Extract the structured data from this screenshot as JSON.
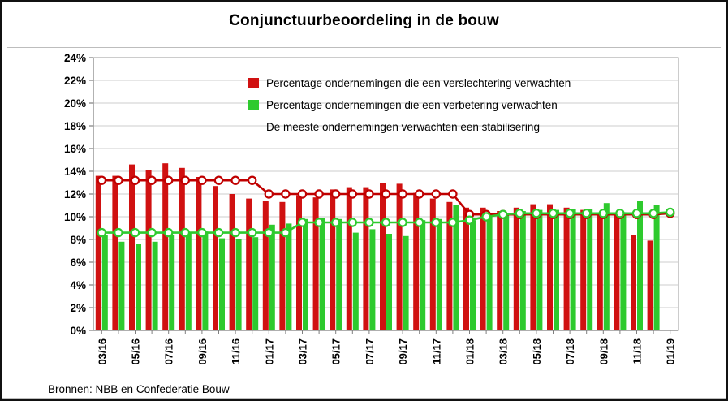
{
  "title": "Conjunctuurbeoordeling in de bouw",
  "source": "Bronnen: NBB en Confederatie Bouw",
  "legend": {
    "items": [
      {
        "swatch": "#d01111",
        "label": "Percentage ondernemingen die een verslechtering verwachten"
      },
      {
        "swatch": "#2eca2e",
        "label": "Percentage ondernemingen die een verbetering verwachten"
      },
      {
        "swatch": null,
        "label": "De meeste ondernemingen verwachten een stabilisering"
      }
    ]
  },
  "chart_data": {
    "type": "bar",
    "title": "Conjunctuurbeoordeling in de bouw",
    "categories": [
      "03/16",
      "04/16",
      "05/16",
      "06/16",
      "07/16",
      "08/16",
      "09/16",
      "10/16",
      "11/16",
      "12/16",
      "01/17",
      "02/17",
      "03/17",
      "04/17",
      "05/17",
      "06/17",
      "07/17",
      "08/17",
      "09/17",
      "10/17",
      "11/17",
      "12/17",
      "01/18",
      "02/18",
      "03/18",
      "04/18",
      "05/18",
      "06/18",
      "07/18",
      "08/18",
      "09/18",
      "10/18",
      "11/18",
      "12/18",
      "01/19"
    ],
    "x_tick_labels_shown": [
      "03/16",
      "05/16",
      "07/16",
      "09/16",
      "11/16",
      "01/17",
      "03/17",
      "05/17",
      "07/17",
      "09/17",
      "11/17",
      "01/18",
      "03/18",
      "05/18",
      "07/18",
      "09/18",
      "11/18",
      "01/19"
    ],
    "ylim": [
      0,
      24
    ],
    "ytick_step": 2,
    "ytick_suffix": "%",
    "grid": "horizontal",
    "legend_position": "top-inside",
    "series": [
      {
        "id": "verslechtering-bars",
        "name": "Percentage ondernemingen die een verslechtering verwachten",
        "type": "bar",
        "color": "#d01111",
        "values": [
          13.6,
          13.6,
          14.6,
          14.1,
          14.7,
          14.3,
          13.5,
          12.7,
          12.0,
          11.6,
          11.4,
          11.3,
          11.9,
          11.7,
          12.4,
          12.6,
          12.6,
          13.0,
          12.9,
          12.1,
          11.6,
          11.3,
          10.8,
          10.8,
          10.5,
          10.8,
          11.1,
          11.1,
          10.8,
          10.6,
          10.2,
          10.3,
          8.4,
          7.9,
          null
        ]
      },
      {
        "id": "verbetering-bars",
        "name": "Percentage ondernemingen die een verbetering verwachten",
        "type": "bar",
        "color": "#2eca2e",
        "values": [
          8.4,
          7.8,
          7.6,
          7.8,
          8.4,
          8.6,
          8.7,
          8.1,
          8.0,
          8.2,
          9.3,
          9.4,
          9.8,
          9.9,
          9.8,
          8.6,
          8.9,
          8.5,
          8.3,
          9.7,
          9.8,
          11.0,
          9.7,
          10.0,
          10.2,
          10.5,
          10.6,
          10.6,
          10.7,
          10.7,
          11.2,
          10.4,
          11.4,
          11.0,
          null
        ]
      },
      {
        "id": "verslechtering-line",
        "name": "verslechtering (lijn)",
        "type": "line",
        "marker": "open-circle",
        "color": "#c00000",
        "values": [
          13.2,
          13.2,
          13.2,
          13.2,
          13.2,
          13.2,
          13.2,
          13.2,
          13.2,
          13.2,
          12.0,
          12.0,
          12.0,
          12.0,
          12.0,
          12.0,
          12.0,
          12.0,
          12.0,
          12.0,
          12.0,
          12.0,
          10.2,
          10.2,
          10.2,
          10.2,
          10.2,
          10.2,
          10.2,
          10.2,
          10.2,
          10.2,
          10.2,
          10.2,
          10.3
        ]
      },
      {
        "id": "verbetering-line",
        "name": "verbetering (lijn)",
        "type": "line",
        "marker": "open-circle",
        "color": "#2eca2e",
        "values": [
          8.6,
          8.6,
          8.6,
          8.6,
          8.6,
          8.6,
          8.6,
          8.6,
          8.6,
          8.6,
          8.6,
          8.6,
          9.5,
          9.5,
          9.5,
          9.5,
          9.5,
          9.5,
          9.5,
          9.5,
          9.5,
          9.5,
          9.7,
          10.0,
          10.2,
          10.3,
          10.3,
          10.3,
          10.3,
          10.3,
          10.3,
          10.3,
          10.3,
          10.3,
          10.4
        ]
      }
    ]
  }
}
